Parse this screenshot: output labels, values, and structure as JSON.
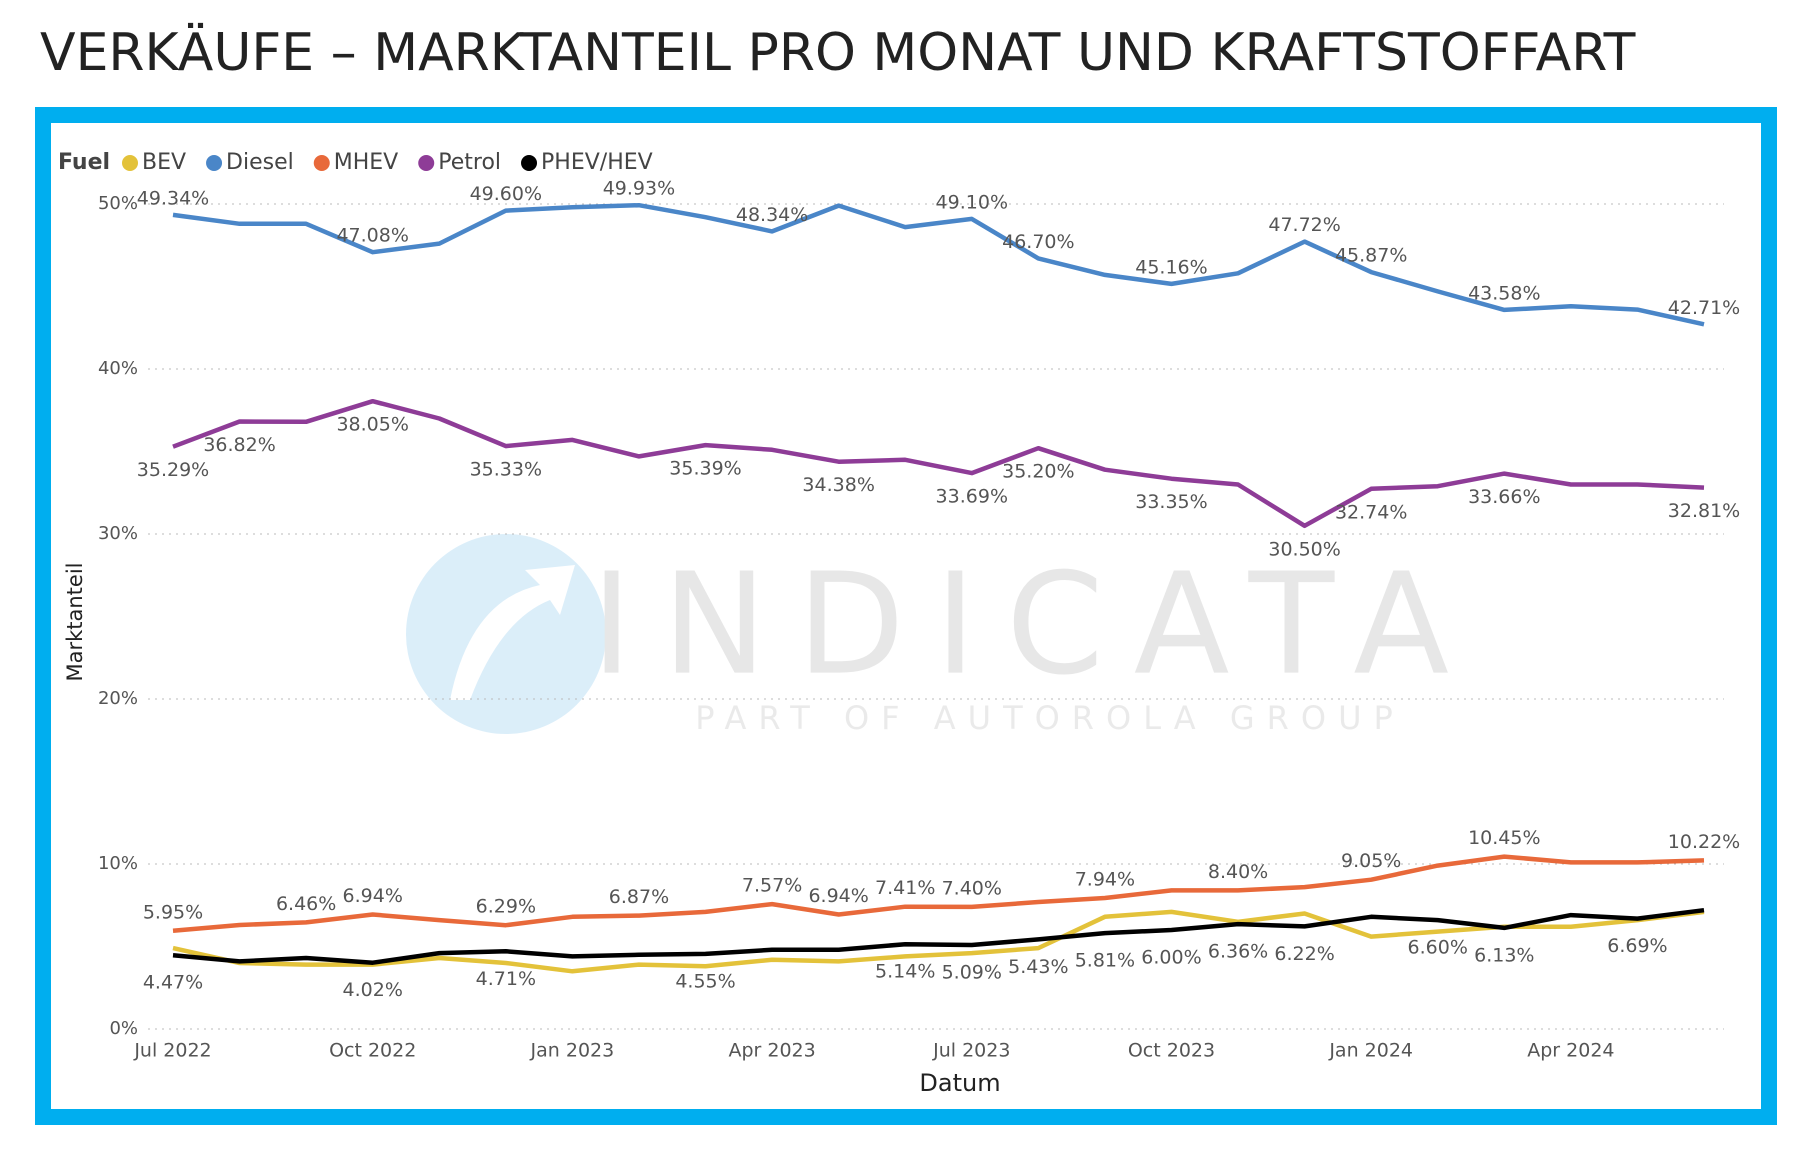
{
  "chart_data": {
    "type": "line",
    "title": "VERKÄUFE – MARKTANTEIL PRO MONAT UND KRAFTSTOFFART",
    "legend_title": "Fuel",
    "x_label": "Datum",
    "y_label": "Marktanteil",
    "watermark": "INDICATA",
    "watermark_subtitle": "PART OF AUTOROLA GROUP",
    "categories": [
      "Jul 2022",
      null,
      null,
      "Oct 2022",
      null,
      null,
      "Jan 2023",
      null,
      null,
      "Apr 2023",
      null,
      null,
      "Jul 2023",
      null,
      null,
      "Oct 2023",
      null,
      null,
      "Jan 2024",
      null,
      null,
      "Apr 2024",
      null,
      null
    ],
    "ylim": [
      0,
      50
    ],
    "yticks": [
      {
        "value": 0,
        "label": "0%"
      },
      {
        "value": 10,
        "label": "10%"
      },
      {
        "value": 20,
        "label": "20%"
      },
      {
        "value": 30,
        "label": "30%"
      },
      {
        "value": 40,
        "label": "40%"
      },
      {
        "value": 50,
        "label": "50%"
      }
    ],
    "grid": true,
    "legend": "top-left",
    "series": [
      {
        "name": "BEV",
        "color": "#e3c23a",
        "values": [
          4.9,
          4.0,
          3.9,
          3.9,
          4.3,
          4.0,
          3.5,
          3.9,
          3.8,
          4.2,
          4.1,
          4.4,
          4.6,
          4.9,
          6.8,
          7.1,
          6.5,
          7.0,
          5.6,
          5.9,
          6.2,
          6.2,
          6.6,
          7.1
        ]
      },
      {
        "name": "Diesel",
        "color": "#4a86c8",
        "values": [
          49.34,
          48.8,
          48.8,
          47.08,
          47.6,
          49.6,
          49.8,
          49.93,
          49.2,
          48.34,
          49.9,
          48.6,
          49.1,
          46.7,
          45.7,
          45.16,
          45.8,
          47.72,
          45.87,
          44.7,
          43.58,
          43.8,
          43.6,
          42.71
        ],
        "value_labels": [
          "49.34%",
          null,
          null,
          "47.08%",
          null,
          "49.60%",
          null,
          "49.93%",
          null,
          "48.34%",
          null,
          null,
          "49.10%",
          "46.70%",
          null,
          "45.16%",
          null,
          "47.72%",
          "45.87%",
          null,
          "43.58%",
          null,
          null,
          "42.71%"
        ]
      },
      {
        "name": "MHEV",
        "color": "#e8693a",
        "values": [
          5.95,
          6.3,
          6.46,
          6.94,
          6.6,
          6.29,
          6.8,
          6.87,
          7.1,
          7.57,
          6.94,
          7.41,
          7.4,
          7.7,
          7.94,
          8.4,
          8.4,
          8.6,
          9.05,
          9.9,
          10.45,
          10.1,
          10.1,
          10.22
        ],
        "value_labels": [
          "5.95%",
          null,
          "6.46%",
          "6.94%",
          null,
          "6.29%",
          null,
          "6.87%",
          null,
          "7.57%",
          "6.94%",
          "7.41%",
          "7.40%",
          null,
          "7.94%",
          null,
          "8.40%",
          null,
          "9.05%",
          null,
          "10.45%",
          null,
          null,
          "10.22%"
        ]
      },
      {
        "name": "Petrol",
        "color": "#8e3c97",
        "values": [
          35.29,
          36.82,
          36.8,
          38.05,
          37.0,
          35.33,
          35.7,
          34.7,
          35.39,
          35.1,
          34.38,
          34.5,
          33.69,
          35.2,
          33.9,
          33.35,
          33.0,
          30.5,
          32.74,
          32.9,
          33.66,
          33.0,
          33.0,
          32.81
        ],
        "value_labels": [
          "35.29%",
          "36.82%",
          null,
          "38.05%",
          null,
          "35.33%",
          null,
          null,
          "35.39%",
          null,
          "34.38%",
          null,
          "33.69%",
          "35.20%",
          null,
          "33.35%",
          null,
          "30.50%",
          "32.74%",
          null,
          "33.66%",
          null,
          null,
          "32.81%"
        ]
      },
      {
        "name": "PHEV/HEV",
        "color": "#000000",
        "values": [
          4.47,
          4.1,
          4.3,
          4.02,
          4.6,
          4.71,
          4.4,
          4.5,
          4.55,
          4.8,
          4.8,
          5.14,
          5.09,
          5.43,
          5.81,
          6.0,
          6.36,
          6.22,
          6.8,
          6.6,
          6.13,
          6.9,
          6.69,
          7.2
        ],
        "value_labels": [
          "4.47%",
          null,
          null,
          "4.02%",
          null,
          "4.71%",
          null,
          null,
          "4.55%",
          null,
          null,
          "5.14%",
          "5.09%",
          "5.43%",
          "5.81%",
          "6.00%",
          "6.36%",
          "6.22%",
          null,
          "6.60%",
          "6.13%",
          null,
          "6.69%",
          null
        ]
      }
    ]
  }
}
